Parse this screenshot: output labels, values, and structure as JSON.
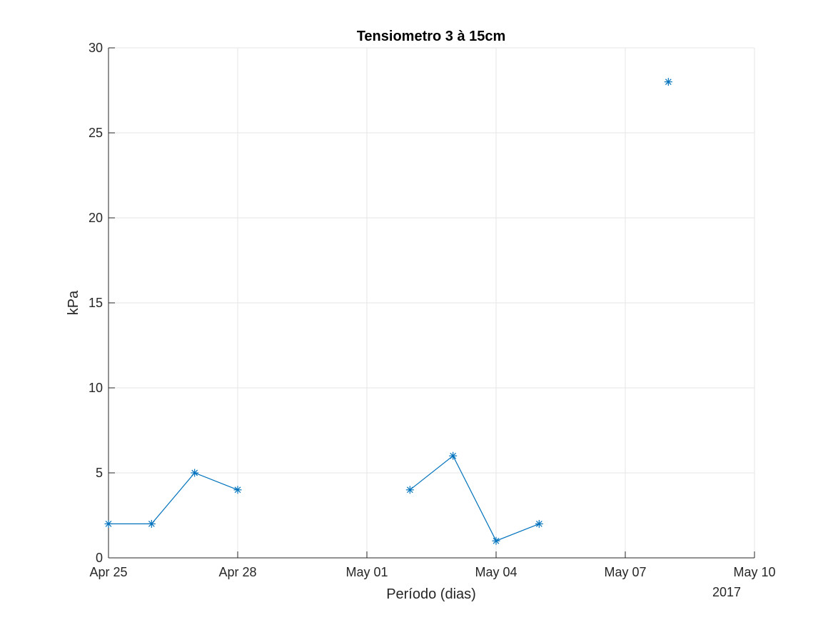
{
  "chart_data": {
    "type": "line",
    "title": "Tensiometro 3 à 15cm",
    "xlabel": "Período (dias)",
    "ylabel": "kPa",
    "year_label": "2017",
    "x_axis": {
      "type": "date",
      "range": [
        "2017-04-25",
        "2017-05-10"
      ],
      "ticks": [
        {
          "date": "2017-04-25",
          "label": "Apr 25"
        },
        {
          "date": "2017-04-28",
          "label": "Apr 28"
        },
        {
          "date": "2017-05-01",
          "label": "May 01"
        },
        {
          "date": "2017-05-04",
          "label": "May 04"
        },
        {
          "date": "2017-05-07",
          "label": "May 07"
        },
        {
          "date": "2017-05-10",
          "label": "May 10"
        }
      ]
    },
    "ylim": [
      0,
      30
    ],
    "yticks": [
      0,
      5,
      10,
      15,
      20,
      25,
      30
    ],
    "grid": true,
    "series": [
      {
        "color": "#0072BD",
        "marker": "asterisk",
        "points": [
          {
            "x": "2017-04-25",
            "y": 2
          },
          {
            "x": "2017-04-26",
            "y": 2
          },
          {
            "x": "2017-04-27",
            "y": 5
          },
          {
            "x": "2017-04-28",
            "y": 4
          },
          {
            "x": "2017-04-29",
            "y": null
          },
          {
            "x": "2017-04-30",
            "y": null
          },
          {
            "x": "2017-05-01",
            "y": null
          },
          {
            "x": "2017-05-02",
            "y": 4
          },
          {
            "x": "2017-05-03",
            "y": 6
          },
          {
            "x": "2017-05-04",
            "y": 1
          },
          {
            "x": "2017-05-05",
            "y": 2
          },
          {
            "x": "2017-05-06",
            "y": null
          },
          {
            "x": "2017-05-07",
            "y": null
          },
          {
            "x": "2017-05-08",
            "y": 28
          }
        ]
      }
    ]
  }
}
